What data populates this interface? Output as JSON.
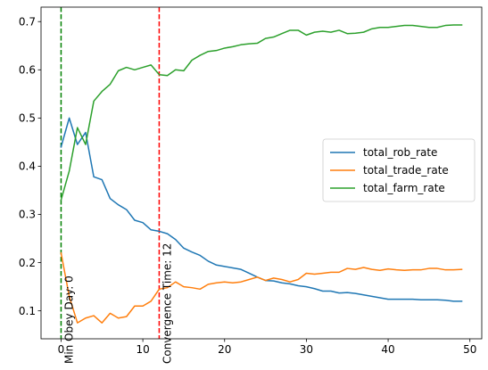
{
  "chart_data": {
    "type": "line",
    "title": "",
    "xlabel": "",
    "ylabel": "",
    "xlim": [
      -2.45,
      51.45
    ],
    "ylim": [
      0.042,
      0.73
    ],
    "xticks": [
      0,
      10,
      20,
      30,
      40,
      50
    ],
    "xtick_labels": [
      "0",
      "10",
      "20",
      "30",
      "40",
      "50"
    ],
    "yticks": [
      0.1,
      0.2,
      0.3,
      0.4,
      0.5,
      0.6,
      0.7
    ],
    "ytick_labels": [
      "0.1",
      "0.2",
      "0.3",
      "0.4",
      "0.5",
      "0.6",
      "0.7"
    ],
    "grid": false,
    "legend_position": "center-right",
    "x": [
      0,
      1,
      2,
      3,
      4,
      5,
      6,
      7,
      8,
      9,
      10,
      11,
      12,
      13,
      14,
      15,
      16,
      17,
      18,
      19,
      20,
      21,
      22,
      23,
      24,
      25,
      26,
      27,
      28,
      29,
      30,
      31,
      32,
      33,
      34,
      35,
      36,
      37,
      38,
      39,
      40,
      41,
      42,
      43,
      44,
      45,
      46,
      47,
      48,
      49
    ],
    "series": [
      {
        "name": "total_rob_rate",
        "color": "#1f77b4",
        "values": [
          0.44,
          0.5,
          0.445,
          0.47,
          0.378,
          0.372,
          0.333,
          0.32,
          0.31,
          0.288,
          0.283,
          0.268,
          0.265,
          0.26,
          0.248,
          0.23,
          0.222,
          0.215,
          0.203,
          0.195,
          0.192,
          0.189,
          0.186,
          0.178,
          0.17,
          0.163,
          0.162,
          0.158,
          0.156,
          0.152,
          0.15,
          0.146,
          0.141,
          0.141,
          0.137,
          0.138,
          0.136,
          0.133,
          0.13,
          0.127,
          0.124,
          0.124,
          0.124,
          0.124,
          0.123,
          0.123,
          0.123,
          0.122,
          0.12,
          0.12
        ]
      },
      {
        "name": "total_trade_rate",
        "color": "#ff7f0e",
        "values": [
          0.22,
          0.13,
          0.075,
          0.085,
          0.09,
          0.075,
          0.095,
          0.085,
          0.088,
          0.11,
          0.11,
          0.12,
          0.145,
          0.148,
          0.16,
          0.15,
          0.148,
          0.145,
          0.155,
          0.158,
          0.16,
          0.158,
          0.16,
          0.165,
          0.17,
          0.163,
          0.168,
          0.165,
          0.16,
          0.165,
          0.178,
          0.176,
          0.178,
          0.18,
          0.18,
          0.188,
          0.186,
          0.19,
          0.186,
          0.184,
          0.187,
          0.185,
          0.184,
          0.185,
          0.185,
          0.188,
          0.188,
          0.185,
          0.185,
          0.186
        ]
      },
      {
        "name": "total_farm_rate",
        "color": "#2ca02c",
        "values": [
          0.33,
          0.39,
          0.48,
          0.445,
          0.535,
          0.555,
          0.57,
          0.598,
          0.605,
          0.6,
          0.605,
          0.61,
          0.59,
          0.588,
          0.6,
          0.598,
          0.62,
          0.63,
          0.638,
          0.64,
          0.645,
          0.648,
          0.652,
          0.654,
          0.655,
          0.665,
          0.668,
          0.675,
          0.682,
          0.682,
          0.672,
          0.678,
          0.68,
          0.678,
          0.682,
          0.675,
          0.676,
          0.678,
          0.685,
          0.688,
          0.688,
          0.69,
          0.692,
          0.692,
          0.69,
          0.688,
          0.688,
          0.692,
          0.693,
          0.693
        ]
      }
    ],
    "annotations": [
      {
        "x": 0,
        "label": "Min Obey Day: 0",
        "color": "#008000",
        "style": "dashed"
      },
      {
        "x": 12,
        "label": "Convergence Time: 12",
        "color": "#ff0000",
        "style": "dashed"
      }
    ]
  }
}
